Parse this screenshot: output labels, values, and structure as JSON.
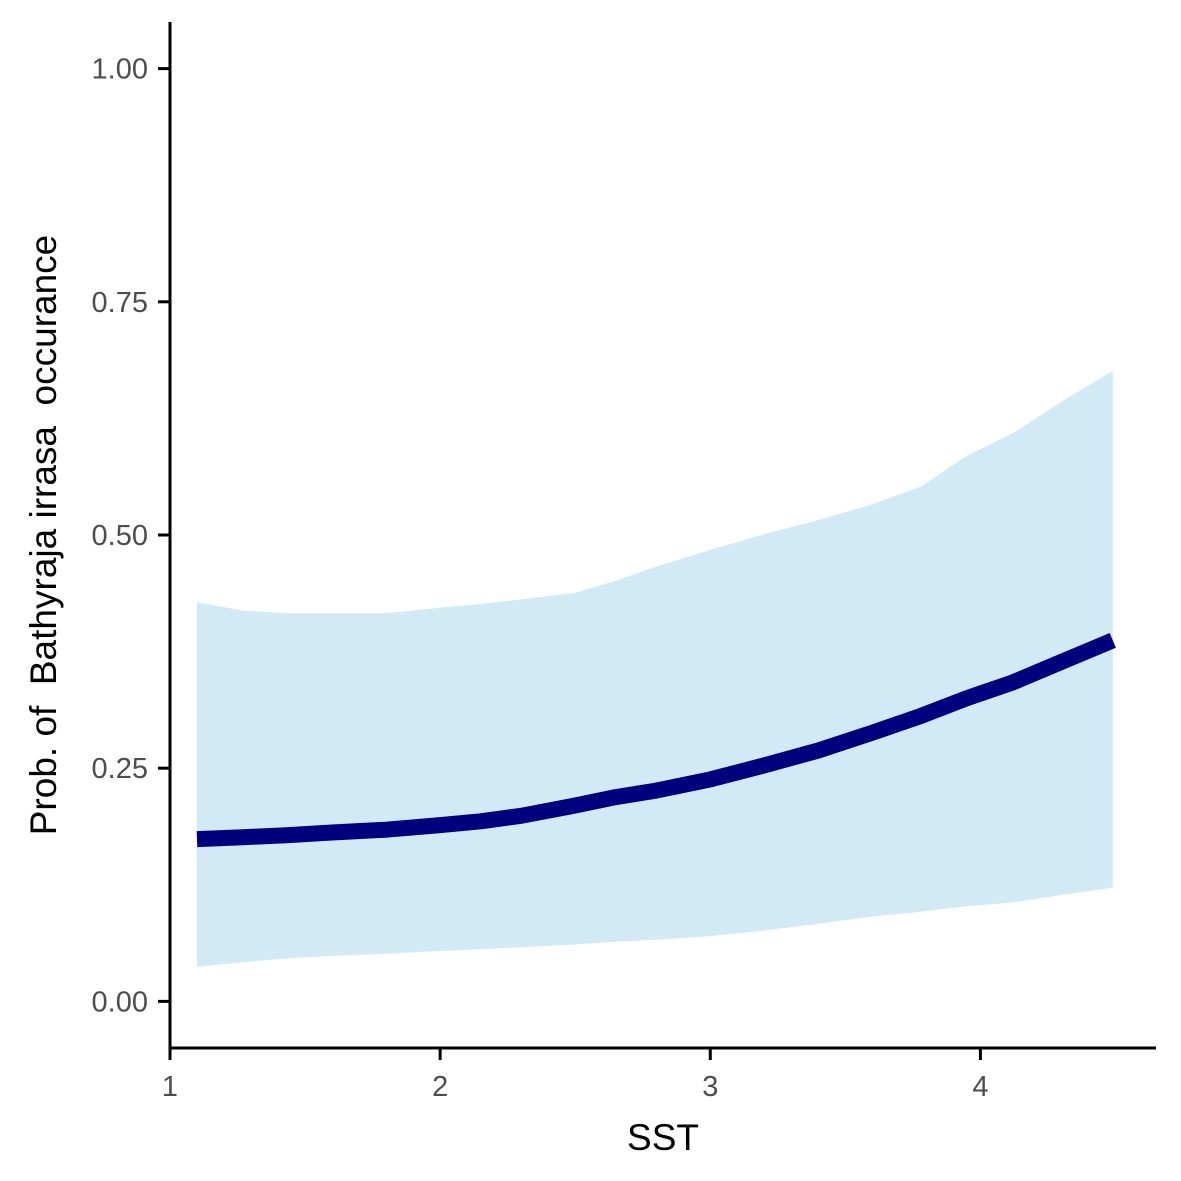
{
  "chart_data": {
    "type": "line",
    "title": "",
    "xlabel": "SST",
    "ylabel": "Prob. of  Bathyraja irrasa  occurance",
    "xlim": [
      1.0,
      4.65
    ],
    "ylim": [
      -0.05,
      1.05
    ],
    "x_ticks": [
      {
        "value": 1,
        "label": "1"
      },
      {
        "value": 2,
        "label": "2"
      },
      {
        "value": 3,
        "label": "3"
      },
      {
        "value": 4,
        "label": "4"
      }
    ],
    "y_ticks": [
      {
        "value": 0.0,
        "label": "0.00"
      },
      {
        "value": 0.25,
        "label": "0.25"
      },
      {
        "value": 0.5,
        "label": "0.50"
      },
      {
        "value": 0.75,
        "label": "0.75"
      },
      {
        "value": 1.0,
        "label": "1.00"
      }
    ],
    "grid": false,
    "x": [
      1.1,
      1.27,
      1.43,
      1.6,
      1.8,
      2.0,
      2.15,
      2.3,
      2.5,
      2.65,
      2.8,
      3.0,
      3.2,
      3.4,
      3.6,
      3.78,
      3.95,
      4.12,
      4.3,
      4.49
    ],
    "series": [
      {
        "values": [
          0.174,
          0.176,
          0.178,
          0.181,
          0.184,
          0.189,
          0.193,
          0.199,
          0.21,
          0.219,
          0.226,
          0.238,
          0.253,
          0.269,
          0.288,
          0.306,
          0.325,
          0.342,
          0.364,
          0.387
        ],
        "lower": [
          0.037,
          0.042,
          0.046,
          0.049,
          0.051,
          0.054,
          0.056,
          0.058,
          0.061,
          0.064,
          0.066,
          0.07,
          0.076,
          0.083,
          0.091,
          0.096,
          0.102,
          0.106,
          0.114,
          0.122
        ],
        "upper": [
          0.428,
          0.419,
          0.416,
          0.416,
          0.416,
          0.422,
          0.426,
          0.431,
          0.438,
          0.451,
          0.466,
          0.484,
          0.501,
          0.516,
          0.533,
          0.552,
          0.585,
          0.609,
          0.643,
          0.676
        ]
      }
    ],
    "colors": {
      "line": "#00007f",
      "ribbon": "#d1eaf6",
      "axis": "#000000",
      "tick_label": "#4d4d4d"
    }
  }
}
